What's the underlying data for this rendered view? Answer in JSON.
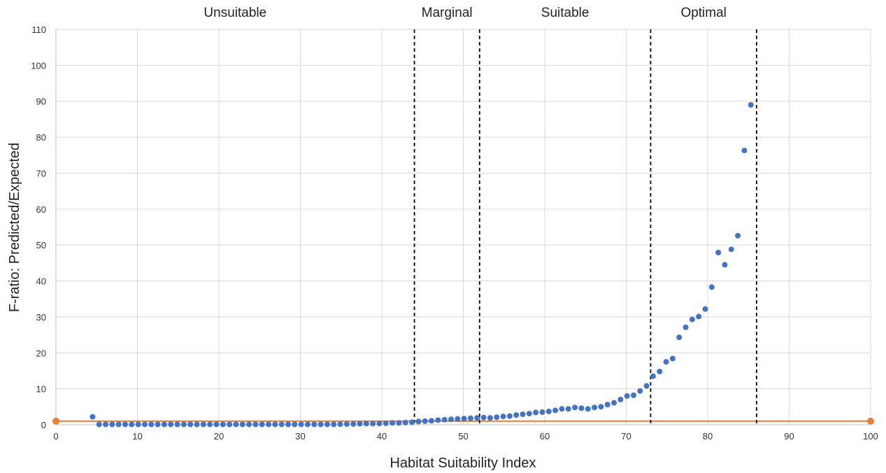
{
  "chart_data": {
    "type": "scatter",
    "title": "",
    "xlabel": "Habitat Suitability Index",
    "ylabel": "F-ratio: Predicted/Expected",
    "xlim": [
      0,
      100
    ],
    "ylim": [
      0,
      110
    ],
    "xticks": [
      0,
      10,
      20,
      30,
      40,
      50,
      60,
      70,
      80,
      90,
      100
    ],
    "yticks": [
      0,
      10,
      20,
      30,
      40,
      50,
      60,
      70,
      80,
      90,
      100,
      110
    ],
    "grid": true,
    "legend": "none",
    "zones": [
      {
        "label": "Unsuitable",
        "from": 0,
        "to": 44
      },
      {
        "label": "Marginal",
        "from": 44,
        "to": 52
      },
      {
        "label": "Suitable",
        "from": 52,
        "to": 73
      },
      {
        "label": "Optimal",
        "from": 73,
        "to": 86
      }
    ],
    "boundaries": [
      44,
      52,
      73,
      86
    ],
    "series": [
      {
        "color": "#4472c4",
        "points": [
          [
            4.5,
            2.2
          ],
          [
            5.3,
            0.1
          ],
          [
            6.1,
            0.1
          ],
          [
            6.9,
            0.1
          ],
          [
            7.7,
            0.1
          ],
          [
            8.5,
            0.1
          ],
          [
            9.3,
            0.1
          ],
          [
            10.1,
            0.1
          ],
          [
            10.9,
            0.1
          ],
          [
            11.7,
            0.1
          ],
          [
            12.5,
            0.1
          ],
          [
            13.3,
            0.1
          ],
          [
            14.1,
            0.1
          ],
          [
            14.9,
            0.1
          ],
          [
            15.7,
            0.1
          ],
          [
            16.5,
            0.1
          ],
          [
            17.3,
            0.1
          ],
          [
            18.1,
            0.1
          ],
          [
            18.9,
            0.1
          ],
          [
            19.7,
            0.1
          ],
          [
            20.5,
            0.1
          ],
          [
            21.3,
            0.1
          ],
          [
            22.1,
            0.1
          ],
          [
            22.9,
            0.1
          ],
          [
            23.7,
            0.1
          ],
          [
            24.5,
            0.1
          ],
          [
            25.3,
            0.1
          ],
          [
            26.1,
            0.1
          ],
          [
            26.9,
            0.1
          ],
          [
            27.7,
            0.1
          ],
          [
            28.5,
            0.1
          ],
          [
            29.3,
            0.1
          ],
          [
            30.1,
            0.1
          ],
          [
            30.9,
            0.1
          ],
          [
            31.7,
            0.1
          ],
          [
            32.5,
            0.1
          ],
          [
            33.3,
            0.1
          ],
          [
            34.1,
            0.1
          ],
          [
            34.9,
            0.15
          ],
          [
            35.7,
            0.2
          ],
          [
            36.5,
            0.2
          ],
          [
            37.3,
            0.25
          ],
          [
            38.1,
            0.3
          ],
          [
            38.9,
            0.3
          ],
          [
            39.7,
            0.35
          ],
          [
            40.5,
            0.4
          ],
          [
            41.3,
            0.5
          ],
          [
            42.1,
            0.5
          ],
          [
            42.9,
            0.6
          ],
          [
            43.7,
            0.7
          ],
          [
            44.5,
            0.9
          ],
          [
            45.3,
            1.0
          ],
          [
            46.1,
            1.1
          ],
          [
            46.9,
            1.3
          ],
          [
            47.7,
            1.4
          ],
          [
            48.5,
            1.5
          ],
          [
            49.3,
            1.6
          ],
          [
            50.1,
            1.7
          ],
          [
            50.9,
            1.8
          ],
          [
            51.7,
            1.9
          ],
          [
            52.5,
            2.0
          ],
          [
            53.3,
            1.9
          ],
          [
            54.1,
            2.1
          ],
          [
            54.9,
            2.3
          ],
          [
            55.7,
            2.4
          ],
          [
            56.5,
            2.7
          ],
          [
            57.3,
            2.9
          ],
          [
            58.1,
            3.1
          ],
          [
            58.9,
            3.4
          ],
          [
            59.7,
            3.5
          ],
          [
            60.5,
            3.7
          ],
          [
            61.3,
            4.0
          ],
          [
            62.1,
            4.4
          ],
          [
            62.9,
            4.4
          ],
          [
            63.7,
            4.8
          ],
          [
            64.5,
            4.6
          ],
          [
            65.3,
            4.4
          ],
          [
            66.1,
            4.8
          ],
          [
            66.9,
            5.0
          ],
          [
            67.7,
            5.6
          ],
          [
            68.5,
            6.1
          ],
          [
            69.3,
            7.0
          ],
          [
            70.1,
            8.0
          ],
          [
            70.9,
            8.2
          ],
          [
            71.7,
            9.4
          ],
          [
            72.5,
            10.8
          ],
          [
            73.3,
            13.5
          ],
          [
            74.1,
            14.8
          ],
          [
            74.9,
            17.5
          ],
          [
            75.7,
            18.4
          ],
          [
            76.5,
            24.3
          ],
          [
            77.3,
            27.1
          ],
          [
            78.1,
            29.3
          ],
          [
            78.9,
            30.1
          ],
          [
            79.7,
            32.2
          ],
          [
            80.5,
            38.3
          ],
          [
            81.3,
            47.9
          ],
          [
            82.1,
            44.5
          ],
          [
            82.9,
            48.8
          ],
          [
            83.7,
            52.6
          ],
          [
            84.5,
            76.3
          ],
          [
            85.3,
            89.0
          ]
        ]
      },
      {
        "color": "#ed7d31",
        "line": true,
        "points": [
          [
            0,
            1
          ],
          [
            100,
            1
          ]
        ]
      }
    ]
  }
}
